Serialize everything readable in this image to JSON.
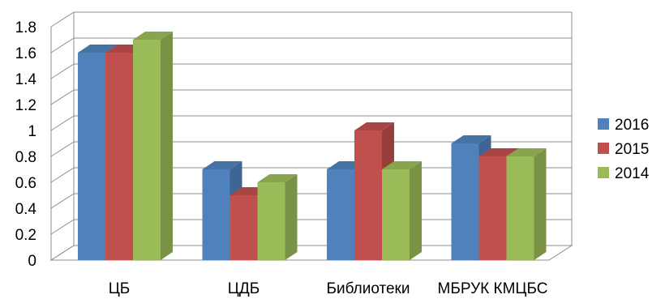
{
  "chart_data": {
    "type": "bar",
    "title": "",
    "xlabel": "",
    "ylabel": "",
    "categories": [
      "ЦБ",
      "ЦДБ",
      "Библиотеки",
      "МБРУК КМЦБС"
    ],
    "series": [
      {
        "name": "2016",
        "color": "#4F81BD",
        "values": [
          1.6,
          0.7,
          0.7,
          0.9
        ]
      },
      {
        "name": "2015",
        "color": "#C0504D",
        "values": [
          1.6,
          0.5,
          1.0,
          0.8
        ]
      },
      {
        "name": "2014",
        "color": "#9BBB59",
        "values": [
          1.7,
          0.6,
          0.7,
          0.8
        ]
      }
    ],
    "ylim": [
      0,
      1.8
    ],
    "yticks": [
      "0",
      "0.2",
      "0.4",
      "0.6",
      "0.8",
      "1",
      "1.2",
      "1.4",
      "1.6",
      "1.8"
    ],
    "grid": true,
    "legend_position": "right",
    "style": "3d-clustered-column"
  }
}
